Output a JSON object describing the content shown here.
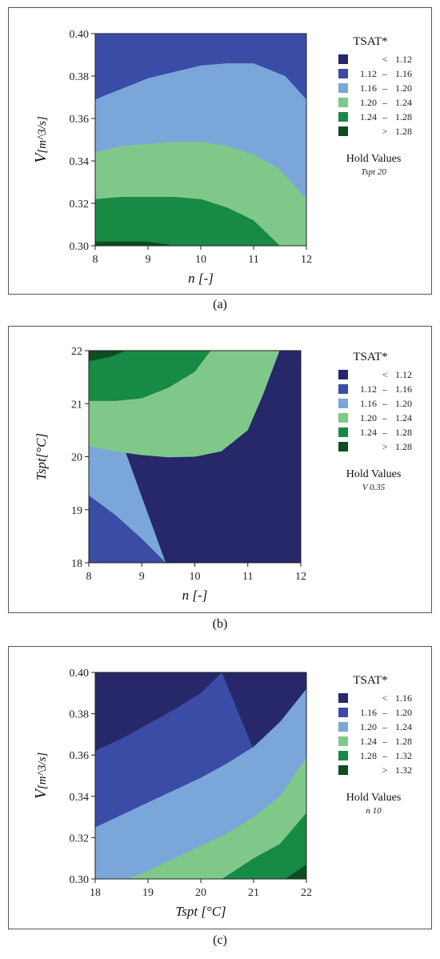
{
  "colors": [
    "#26286a",
    "#3a4ca6",
    "#7aa6da",
    "#80c88a",
    "#178a45",
    "#0d4d22"
  ],
  "chart_data": [
    {
      "type": "contour",
      "caption": "(a)",
      "ylabel_var": "V",
      "ylabel_unit": "[m^3/s]",
      "xlabel": "n [-]",
      "x_ticks": [
        "8",
        "9",
        "10",
        "11",
        "12"
      ],
      "y_ticks": [
        "0.30",
        "0.32",
        "0.34",
        "0.36",
        "0.38",
        "0.40"
      ],
      "xlim": [
        8,
        12
      ],
      "ylim": [
        0.3,
        0.4
      ],
      "legend_title": "TSAT*",
      "legend": [
        {
          "sym": "<",
          "lo": "",
          "hi": "1.12"
        },
        {
          "sym": "–",
          "lo": "1.12",
          "hi": "1.16"
        },
        {
          "sym": "–",
          "lo": "1.16",
          "hi": "1.20"
        },
        {
          "sym": "–",
          "lo": "1.20",
          "hi": "1.24"
        },
        {
          "sym": "–",
          "lo": "1.24",
          "hi": "1.28"
        },
        {
          "sym": ">",
          "lo": "",
          "hi": "1.28"
        }
      ],
      "hold_title": "Hold Values",
      "hold_value": "Tspt  20",
      "contour_lines": [
        {
          "level": "1.16",
          "points": [
            [
              8,
              0.369
            ],
            [
              9,
              0.379
            ],
            [
              10,
              0.385
            ],
            [
              10.5,
              0.386
            ],
            [
              11,
              0.386
            ],
            [
              11.6,
              0.38
            ],
            [
              12,
              0.369
            ]
          ]
        },
        {
          "level": "1.20",
          "points": [
            [
              8,
              0.344
            ],
            [
              8.5,
              0.347
            ],
            [
              9,
              0.348
            ],
            [
              9.5,
              0.349
            ],
            [
              10,
              0.349
            ],
            [
              10.5,
              0.347
            ],
            [
              11,
              0.343
            ],
            [
              11.5,
              0.336
            ],
            [
              12,
              0.322
            ]
          ]
        },
        {
          "level": "1.24",
          "points": [
            [
              8,
              0.322
            ],
            [
              8.5,
              0.323
            ],
            [
              9,
              0.323
            ],
            [
              9.5,
              0.323
            ],
            [
              10,
              0.322
            ],
            [
              10.5,
              0.318
            ],
            [
              11,
              0.312
            ],
            [
              11.5,
              0.3
            ]
          ]
        },
        {
          "level": "1.28",
          "points": [
            [
              8,
              0.302
            ],
            [
              8.5,
              0.302
            ],
            [
              9,
              0.302
            ],
            [
              9.5,
              0.3
            ]
          ]
        }
      ]
    },
    {
      "type": "contour",
      "caption": "(b)",
      "ylabel_var": "Tspt",
      "ylabel_unit": "[°C]",
      "xlabel": "n [-]",
      "x_ticks": [
        "8",
        "9",
        "10",
        "11",
        "12"
      ],
      "y_ticks": [
        "18",
        "19",
        "20",
        "21",
        "22"
      ],
      "xlim": [
        8,
        12
      ],
      "ylim": [
        18,
        22
      ],
      "legend_title": "TSAT*",
      "legend": [
        {
          "sym": "<",
          "lo": "",
          "hi": "1.12"
        },
        {
          "sym": "–",
          "lo": "1.12",
          "hi": "1.16"
        },
        {
          "sym": "–",
          "lo": "1.16",
          "hi": "1.20"
        },
        {
          "sym": "–",
          "lo": "1.20",
          "hi": "1.24"
        },
        {
          "sym": "–",
          "lo": "1.24",
          "hi": "1.28"
        },
        {
          "sym": ">",
          "lo": "",
          "hi": "1.28"
        }
      ],
      "hold_title": "Hold Values",
      "hold_value": "V  0.35",
      "contour_lines": [
        {
          "level": "1.12",
          "points": [
            [
              8,
              18.03
            ],
            [
              8.03,
              18.0
            ]
          ]
        },
        {
          "level": "1.16",
          "points": [
            [
              8,
              19.27
            ],
            [
              8.5,
              18.9
            ],
            [
              9,
              18.45
            ],
            [
              9.45,
              18.0
            ]
          ]
        },
        {
          "level": "1.20",
          "points": [
            [
              8,
              20.2
            ],
            [
              8.5,
              20.1
            ],
            [
              9,
              20.03
            ],
            [
              9.5,
              19.99
            ],
            [
              10,
              20.0
            ],
            [
              10.5,
              20.1
            ],
            [
              11,
              20.5
            ],
            [
              11.3,
              21.2
            ],
            [
              11.6,
              22.0
            ]
          ]
        },
        {
          "level": "1.24",
          "points": [
            [
              8,
              21.05
            ],
            [
              8.5,
              21.05
            ],
            [
              9,
              21.1
            ],
            [
              9.5,
              21.3
            ],
            [
              10,
              21.6
            ],
            [
              10.3,
              22.0
            ]
          ]
        },
        {
          "level": "1.28",
          "points": [
            [
              8,
              21.8
            ],
            [
              8.4,
              21.88
            ],
            [
              8.7,
              22.0
            ]
          ]
        }
      ]
    },
    {
      "type": "contour",
      "caption": "(c)",
      "ylabel_var": "V",
      "ylabel_unit": "[m^3/s]",
      "xlabel": "Tspt [°C]",
      "x_ticks": [
        "18",
        "19",
        "20",
        "21",
        "22"
      ],
      "y_ticks": [
        "0.30",
        "0.32",
        "0.34",
        "0.36",
        "0.38",
        "0.40"
      ],
      "xlim": [
        18,
        22
      ],
      "ylim": [
        0.3,
        0.4
      ],
      "legend_title": "TSAT*",
      "legend": [
        {
          "sym": "<",
          "lo": "",
          "hi": "1.16"
        },
        {
          "sym": "–",
          "lo": "1.16",
          "hi": "1.20"
        },
        {
          "sym": "–",
          "lo": "1.20",
          "hi": "1.24"
        },
        {
          "sym": "–",
          "lo": "1.24",
          "hi": "1.28"
        },
        {
          "sym": "–",
          "lo": "1.28",
          "hi": "1.32"
        },
        {
          "sym": ">",
          "lo": "",
          "hi": "1.32"
        }
      ],
      "hold_title": "Hold Values",
      "hold_value": "n  10",
      "contour_lines": [
        {
          "level": "1.16",
          "points": [
            [
              18,
              0.362
            ],
            [
              18.5,
              0.368
            ],
            [
              19,
              0.375
            ],
            [
              19.5,
              0.382
            ],
            [
              20,
              0.39
            ],
            [
              20.4,
              0.4
            ]
          ]
        },
        {
          "level": "1.20",
          "points": [
            [
              18,
              0.325
            ],
            [
              18.5,
              0.331
            ],
            [
              19,
              0.337
            ],
            [
              19.5,
              0.343
            ],
            [
              20,
              0.349
            ],
            [
              20.5,
              0.356
            ],
            [
              21,
              0.364
            ],
            [
              21.5,
              0.376
            ],
            [
              22,
              0.392
            ]
          ]
        },
        {
          "level": "1.24",
          "points": [
            [
              18.6,
              0.3
            ],
            [
              19,
              0.304
            ],
            [
              19.5,
              0.31
            ],
            [
              20,
              0.316
            ],
            [
              20.5,
              0.322
            ],
            [
              21,
              0.33
            ],
            [
              21.5,
              0.34
            ],
            [
              22,
              0.359
            ]
          ]
        },
        {
          "level": "1.28",
          "points": [
            [
              20.4,
              0.3
            ],
            [
              20.7,
              0.305
            ],
            [
              21,
              0.31
            ],
            [
              21.5,
              0.317
            ],
            [
              22,
              0.332
            ]
          ]
        },
        {
          "level": "1.32",
          "points": [
            [
              21.6,
              0.3
            ],
            [
              22,
              0.307
            ]
          ]
        }
      ]
    }
  ]
}
